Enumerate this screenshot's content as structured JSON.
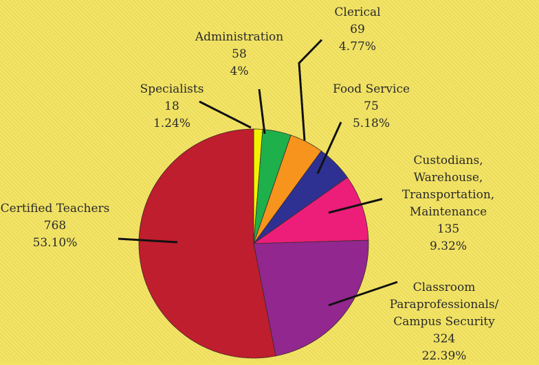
{
  "chart_data": {
    "type": "pie",
    "categories": [
      "Specialists",
      "Administration",
      "Clerical",
      "Food Service",
      "Custodians, Warehouse,\nTransportation,\nMaintenance",
      "Classroom\nParaprofessionals/\nCampus Security",
      "Certified Teachers"
    ],
    "values": [
      18,
      58,
      69,
      75,
      135,
      324,
      768
    ],
    "percentages": [
      1.24,
      4,
      4.77,
      5.18,
      9.32,
      22.39,
      53.1
    ],
    "percentage_labels": [
      "1.24%",
      "4%",
      "4.77%",
      "5.18%",
      "9.32%",
      "22.39%",
      "53.10%"
    ],
    "colors": [
      "#f2f200",
      "#1eb04a",
      "#f7941d",
      "#2e3192",
      "#ec1e79",
      "#92278f",
      "#be1e2d"
    ]
  }
}
